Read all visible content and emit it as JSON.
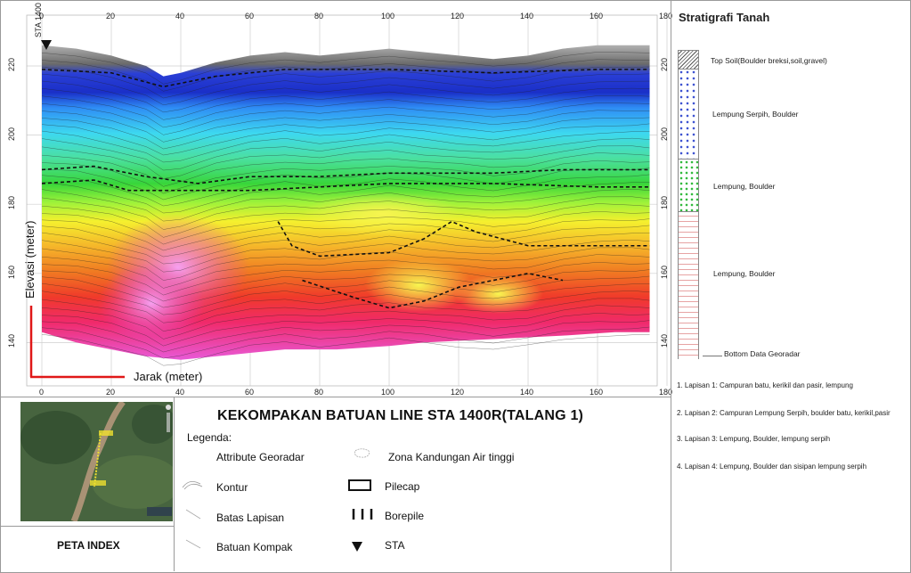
{
  "section": {
    "sta_label": "STA 1400",
    "x_ticks": [
      "0",
      "20",
      "40",
      "60",
      "80",
      "100",
      "120",
      "140",
      "160",
      "180"
    ],
    "y_ticks": [
      "220",
      "200",
      "180",
      "160",
      "140"
    ],
    "ylabel": "Elevasi (meter)",
    "xlabel": "Jarak (meter)"
  },
  "stratigrafi": {
    "title": "Stratigrafi Tanah",
    "layers": [
      {
        "label": "Top Soil(Boulder breksi,soil,gravel)"
      },
      {
        "label": "Lempung Serpih, Boulder"
      },
      {
        "label": "Lempung, Boulder"
      },
      {
        "label": "Lempung, Boulder"
      }
    ],
    "bottom_label": "Bottom Data Georadar",
    "lapisan": [
      "1. Lapisan 1: Campuran batu, kerikil dan pasir, lempung",
      "2. Lapisan 2: Campuran Lempung Serpih, boulder batu, kerikil,pasir",
      "3. Lapisan 3: Lempung, Boulder, lempung serpih",
      "4. Lapisan 4: Lempung, Boulder dan sisipan lempung serpih"
    ]
  },
  "title": "KEKOMPAKAN BATUAN LINE STA 1400R(TALANG 1)",
  "peta_index": "PETA INDEX",
  "legenda": {
    "title": "Legenda:",
    "left": [
      "Attribute Georadar",
      "Kontur",
      "Batas Lapisan",
      "Batuan Kompak"
    ],
    "right": [
      "Zona Kandungan Air tinggi",
      "Pilecap",
      "Borepile",
      "STA"
    ]
  }
}
